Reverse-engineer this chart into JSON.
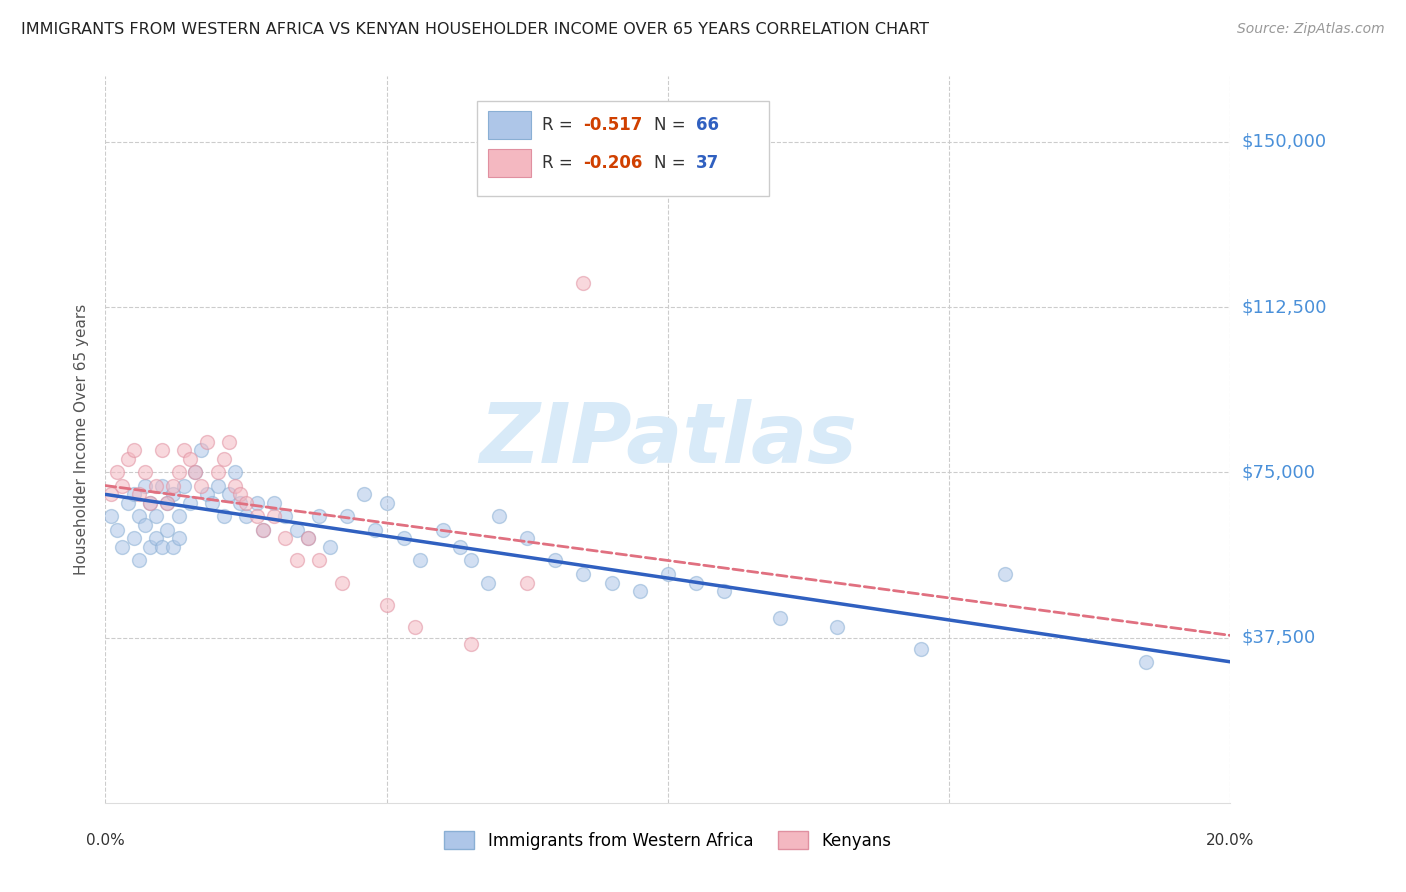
{
  "title": "IMMIGRANTS FROM WESTERN AFRICA VS KENYAN HOUSEHOLDER INCOME OVER 65 YEARS CORRELATION CHART",
  "source": "Source: ZipAtlas.com",
  "ylabel": "Householder Income Over 65 years",
  "xlim": [
    0.0,
    0.2
  ],
  "ylim": [
    0,
    165000
  ],
  "yticks": [
    37500,
    75000,
    112500,
    150000
  ],
  "ytick_labels": [
    "$37,500",
    "$75,000",
    "$112,500",
    "$150,000"
  ],
  "xticks": [
    0.0,
    0.05,
    0.1,
    0.15,
    0.2
  ],
  "xtick_labels": [
    "0.0%",
    "",
    "",
    "",
    "20.0%"
  ],
  "grid_color": "#cccccc",
  "bg_color": "#ffffff",
  "watermark_text": "ZIPatlas",
  "blue_scatter_x": [
    0.001,
    0.002,
    0.003,
    0.004,
    0.005,
    0.005,
    0.006,
    0.006,
    0.007,
    0.007,
    0.008,
    0.008,
    0.009,
    0.009,
    0.01,
    0.01,
    0.011,
    0.011,
    0.012,
    0.012,
    0.013,
    0.013,
    0.014,
    0.015,
    0.016,
    0.017,
    0.018,
    0.019,
    0.02,
    0.021,
    0.022,
    0.023,
    0.024,
    0.025,
    0.027,
    0.028,
    0.03,
    0.032,
    0.034,
    0.036,
    0.038,
    0.04,
    0.043,
    0.046,
    0.048,
    0.05,
    0.053,
    0.056,
    0.06,
    0.063,
    0.065,
    0.068,
    0.07,
    0.075,
    0.08,
    0.085,
    0.09,
    0.095,
    0.1,
    0.105,
    0.11,
    0.12,
    0.13,
    0.145,
    0.16,
    0.185
  ],
  "blue_scatter_y": [
    65000,
    62000,
    58000,
    68000,
    60000,
    70000,
    55000,
    65000,
    63000,
    72000,
    58000,
    68000,
    60000,
    65000,
    72000,
    58000,
    68000,
    62000,
    70000,
    58000,
    65000,
    60000,
    72000,
    68000,
    75000,
    80000,
    70000,
    68000,
    72000,
    65000,
    70000,
    75000,
    68000,
    65000,
    68000,
    62000,
    68000,
    65000,
    62000,
    60000,
    65000,
    58000,
    65000,
    70000,
    62000,
    68000,
    60000,
    55000,
    62000,
    58000,
    55000,
    50000,
    65000,
    60000,
    55000,
    52000,
    50000,
    48000,
    52000,
    50000,
    48000,
    42000,
    40000,
    35000,
    52000,
    32000
  ],
  "pink_scatter_x": [
    0.001,
    0.002,
    0.003,
    0.004,
    0.005,
    0.006,
    0.007,
    0.008,
    0.009,
    0.01,
    0.011,
    0.012,
    0.013,
    0.014,
    0.015,
    0.016,
    0.017,
    0.018,
    0.02,
    0.021,
    0.022,
    0.023,
    0.024,
    0.025,
    0.027,
    0.028,
    0.03,
    0.032,
    0.034,
    0.036,
    0.038,
    0.042,
    0.05,
    0.055,
    0.065,
    0.075,
    0.085
  ],
  "pink_scatter_y": [
    70000,
    75000,
    72000,
    78000,
    80000,
    70000,
    75000,
    68000,
    72000,
    80000,
    68000,
    72000,
    75000,
    80000,
    78000,
    75000,
    72000,
    82000,
    75000,
    78000,
    82000,
    72000,
    70000,
    68000,
    65000,
    62000,
    65000,
    60000,
    55000,
    60000,
    55000,
    50000,
    45000,
    40000,
    36000,
    50000,
    118000
  ],
  "blue_line_x": [
    0.0,
    0.2
  ],
  "blue_line_y": [
    70000,
    32000
  ],
  "pink_line_x": [
    0.0,
    0.2
  ],
  "pink_line_y": [
    72000,
    38000
  ],
  "dot_size": 100,
  "dot_alpha": 0.55,
  "line_color_blue": "#3060c0",
  "line_color_pink": "#e07080",
  "line_style_pink": "--",
  "scatter_color_blue": "#aec6e8",
  "scatter_color_pink": "#f4b8c1",
  "scatter_edge_blue": "#8aafd4",
  "scatter_edge_pink": "#e090a0",
  "title_fontsize": 11.5,
  "source_fontsize": 10,
  "ylabel_fontsize": 11,
  "ytick_label_fontsize": 13,
  "legend_R_color": "#d04000",
  "legend_N_color": "#3060c0",
  "watermark_color": "#d8eaf8",
  "watermark_fontsize": 60
}
